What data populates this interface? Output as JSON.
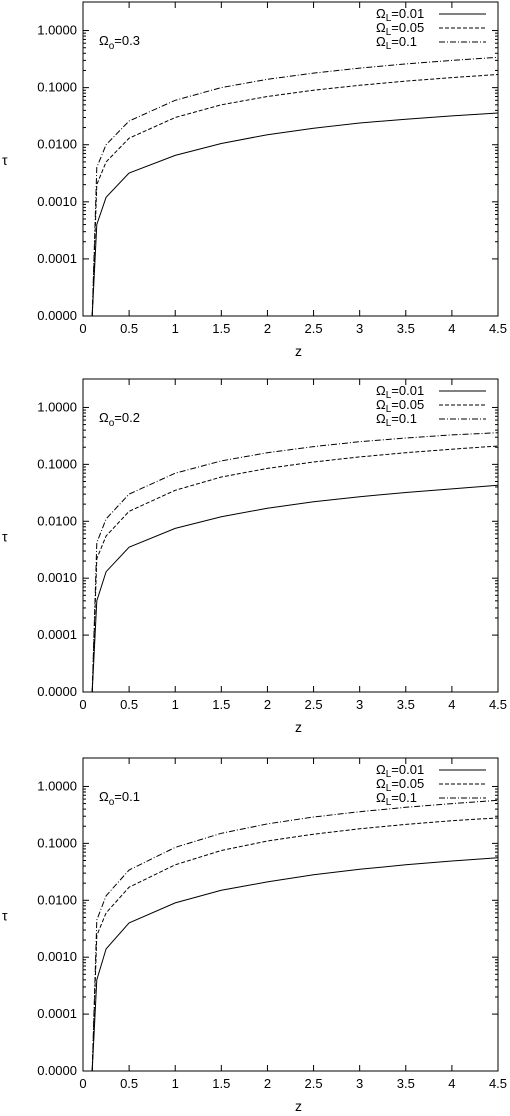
{
  "chart_data": [
    {
      "type": "line",
      "title": "",
      "xlabel": "z",
      "ylabel": "τ",
      "xlim": [
        0,
        4.5
      ],
      "yscale": "log",
      "ylim_labels": [
        "0.0000",
        "0.0001",
        "0.0010",
        "0.0100",
        "0.1000",
        "1.0000"
      ],
      "x_ticks": [
        "0",
        "0.5",
        "1",
        "1.5",
        "2",
        "2.5",
        "3",
        "3.5",
        "4",
        "4.5"
      ],
      "annotation": {
        "symbol": "Ω",
        "sub": "o",
        "text": "=0.3"
      },
      "legend": "top-right",
      "series": [
        {
          "name_sym": "Ω",
          "name_sub": "L",
          "name_rest": "=0.01",
          "style": "solid",
          "x": [
            0.1,
            0.15,
            0.25,
            0.5,
            1,
            1.5,
            2,
            2.5,
            3,
            3.5,
            4,
            4.5
          ],
          "y": [
            1e-05,
            0.0004,
            0.0012,
            0.0032,
            0.0065,
            0.0105,
            0.015,
            0.0195,
            0.024,
            0.028,
            0.032,
            0.036
          ]
        },
        {
          "name_sym": "Ω",
          "name_sub": "L",
          "name_rest": "=0.05",
          "style": "dashed",
          "x": [
            0.1,
            0.15,
            0.25,
            0.5,
            1,
            1.5,
            2,
            2.5,
            3,
            3.5,
            4,
            4.5
          ],
          "y": [
            1e-05,
            0.002,
            0.005,
            0.013,
            0.03,
            0.05,
            0.07,
            0.09,
            0.11,
            0.13,
            0.15,
            0.17
          ]
        },
        {
          "name_sym": "Ω",
          "name_sub": "L",
          "name_rest": "=0.1",
          "style": "dashdot",
          "x": [
            0.1,
            0.15,
            0.25,
            0.5,
            1,
            1.5,
            2,
            2.5,
            3,
            3.5,
            4,
            4.5
          ],
          "y": [
            1e-05,
            0.004,
            0.01,
            0.026,
            0.06,
            0.1,
            0.14,
            0.18,
            0.22,
            0.26,
            0.3,
            0.34
          ]
        }
      ]
    },
    {
      "type": "line",
      "title": "",
      "xlabel": "z",
      "ylabel": "τ",
      "xlim": [
        0,
        4.5
      ],
      "yscale": "log",
      "ylim_labels": [
        "0.0000",
        "0.0001",
        "0.0010",
        "0.0100",
        "0.1000",
        "1.0000"
      ],
      "x_ticks": [
        "0",
        "0.5",
        "1",
        "1.5",
        "2",
        "2.5",
        "3",
        "3.5",
        "4",
        "4.5"
      ],
      "annotation": {
        "symbol": "Ω",
        "sub": "o",
        "text": "=0.2"
      },
      "legend": "top-right",
      "series": [
        {
          "name_sym": "Ω",
          "name_sub": "L",
          "name_rest": "=0.01",
          "style": "solid",
          "x": [
            0.1,
            0.15,
            0.25,
            0.5,
            1,
            1.5,
            2,
            2.5,
            3,
            3.5,
            4,
            4.5
          ],
          "y": [
            1e-05,
            0.0004,
            0.0013,
            0.0035,
            0.0075,
            0.012,
            0.017,
            0.022,
            0.027,
            0.032,
            0.037,
            0.043
          ]
        },
        {
          "name_sym": "Ω",
          "name_sub": "L",
          "name_rest": "=0.05",
          "style": "dashed",
          "x": [
            0.1,
            0.15,
            0.25,
            0.5,
            1,
            1.5,
            2,
            2.5,
            3,
            3.5,
            4,
            4.5
          ],
          "y": [
            1e-05,
            0.0022,
            0.0055,
            0.015,
            0.035,
            0.06,
            0.085,
            0.11,
            0.135,
            0.16,
            0.185,
            0.21
          ]
        },
        {
          "name_sym": "Ω",
          "name_sub": "L",
          "name_rest": "=0.1",
          "style": "dashdot",
          "x": [
            0.1,
            0.15,
            0.25,
            0.5,
            1,
            1.5,
            2,
            2.5,
            3,
            3.5,
            4,
            4.5
          ],
          "y": [
            1e-05,
            0.0042,
            0.011,
            0.03,
            0.07,
            0.115,
            0.16,
            0.205,
            0.25,
            0.29,
            0.33,
            0.36
          ]
        }
      ]
    },
    {
      "type": "line",
      "title": "",
      "xlabel": "z",
      "ylabel": "τ",
      "xlim": [
        0,
        4.5
      ],
      "yscale": "log",
      "ylim_labels": [
        "0.0000",
        "0.0001",
        "0.0010",
        "0.0100",
        "0.1000",
        "1.0000"
      ],
      "x_ticks": [
        "0",
        "0.5",
        "1",
        "1.5",
        "2",
        "2.5",
        "3",
        "3.5",
        "4",
        "4.5"
      ],
      "annotation": {
        "symbol": "Ω",
        "sub": "o",
        "text": "=0.1"
      },
      "legend": "top-right",
      "series": [
        {
          "name_sym": "Ω",
          "name_sub": "L",
          "name_rest": "=0.01",
          "style": "solid",
          "x": [
            0.1,
            0.15,
            0.25,
            0.5,
            1,
            1.5,
            2,
            2.5,
            3,
            3.5,
            4,
            4.5
          ],
          "y": [
            1e-05,
            0.0004,
            0.0014,
            0.004,
            0.009,
            0.015,
            0.021,
            0.028,
            0.035,
            0.042,
            0.049,
            0.056
          ]
        },
        {
          "name_sym": "Ω",
          "name_sub": "L",
          "name_rest": "=0.05",
          "style": "dashed",
          "x": [
            0.1,
            0.15,
            0.25,
            0.5,
            1,
            1.5,
            2,
            2.5,
            3,
            3.5,
            4,
            4.5
          ],
          "y": [
            1e-05,
            0.0024,
            0.006,
            0.017,
            0.042,
            0.075,
            0.11,
            0.145,
            0.18,
            0.215,
            0.25,
            0.28
          ]
        },
        {
          "name_sym": "Ω",
          "name_sub": "L",
          "name_rest": "=0.1",
          "style": "dashdot",
          "x": [
            0.1,
            0.15,
            0.25,
            0.5,
            1,
            1.5,
            2,
            2.5,
            3,
            3.5,
            4,
            4.5
          ],
          "y": [
            1e-05,
            0.0045,
            0.012,
            0.034,
            0.085,
            0.15,
            0.22,
            0.29,
            0.36,
            0.43,
            0.5,
            0.57
          ]
        }
      ]
    }
  ]
}
